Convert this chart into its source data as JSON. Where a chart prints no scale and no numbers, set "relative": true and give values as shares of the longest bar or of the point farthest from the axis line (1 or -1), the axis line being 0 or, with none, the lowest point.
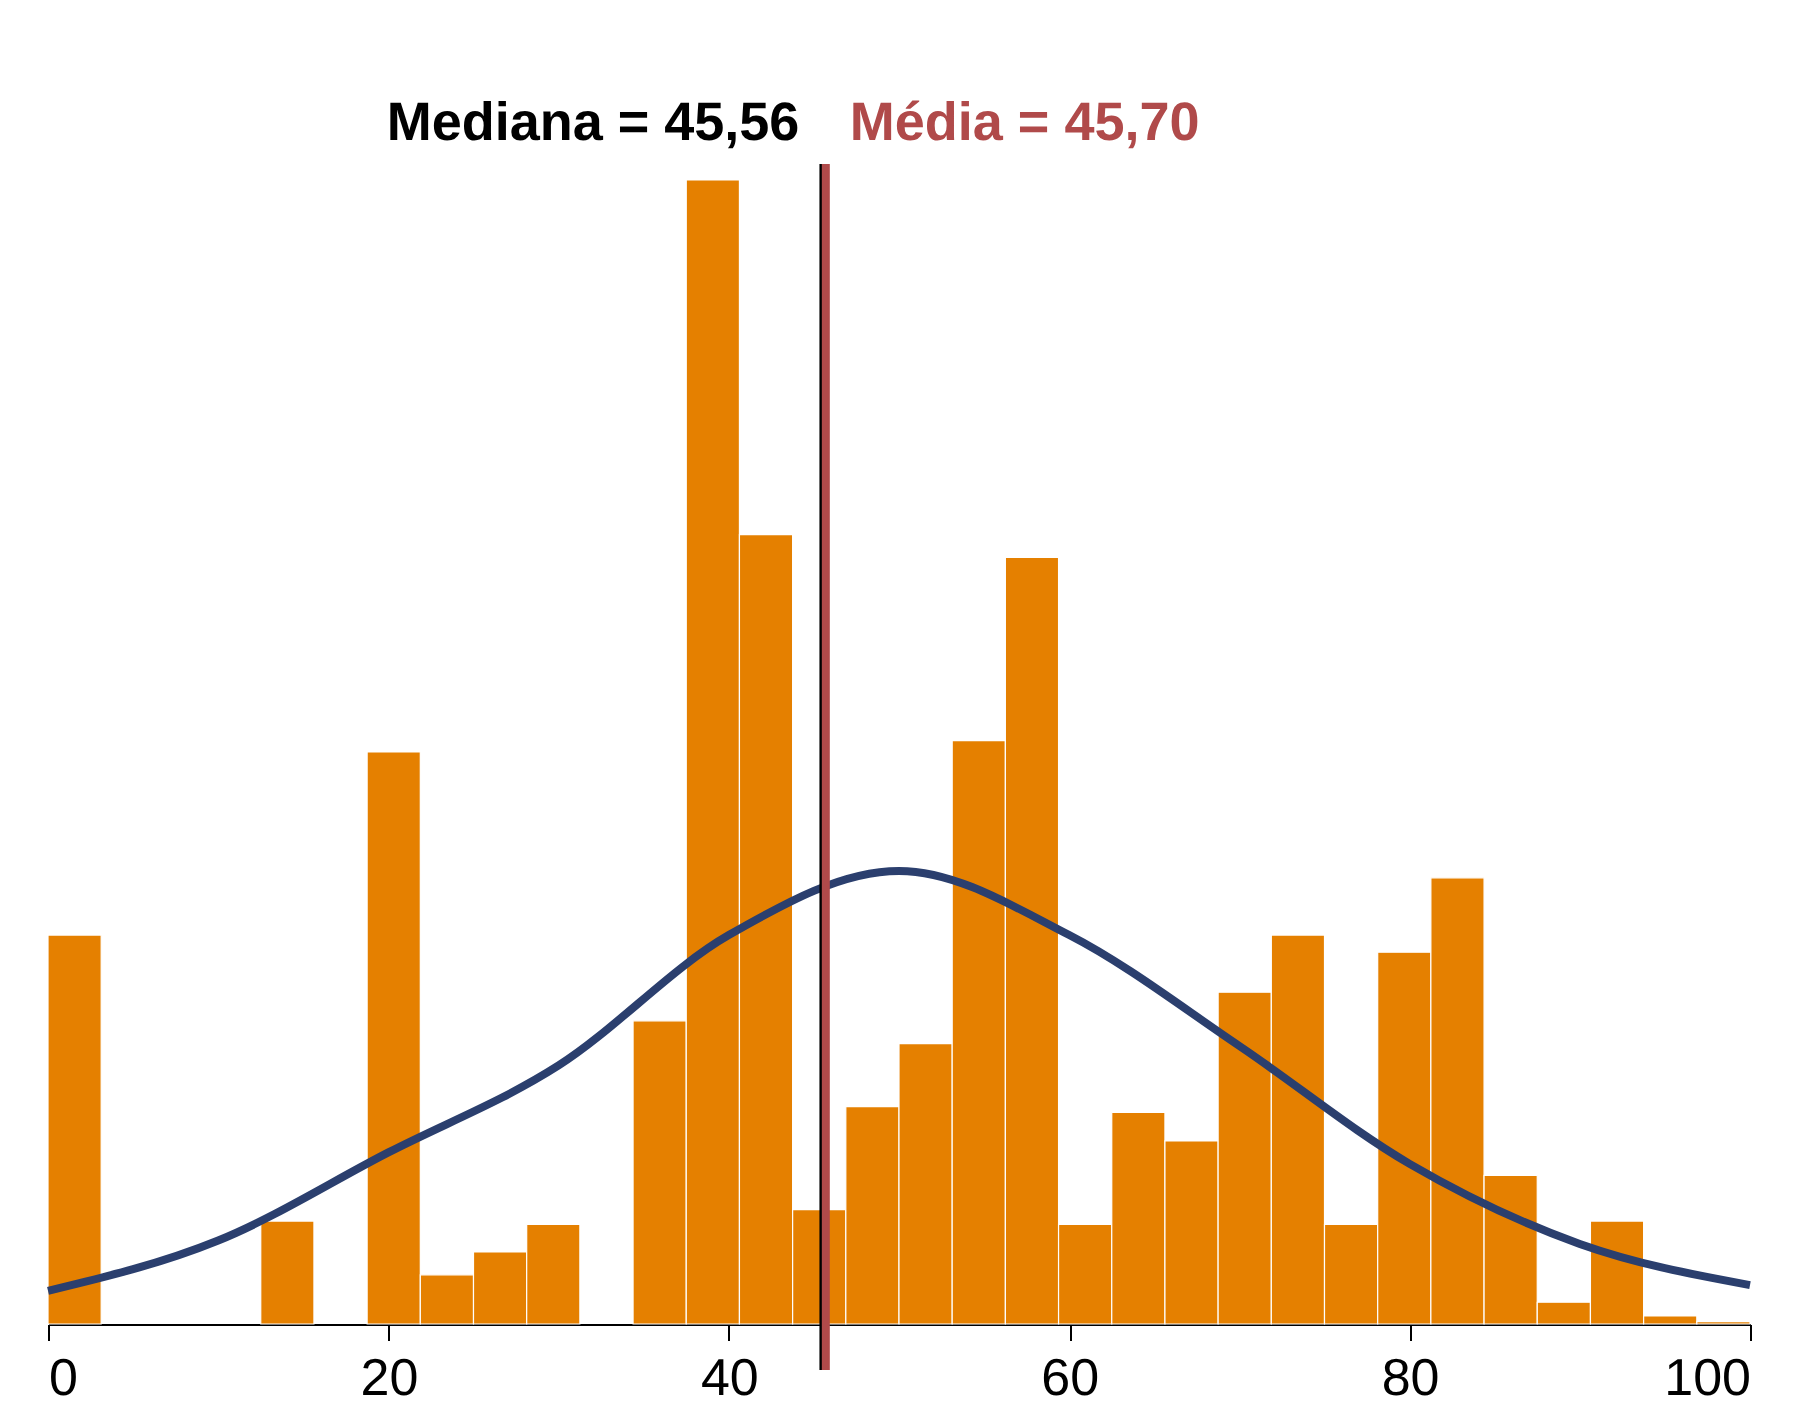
{
  "chart_data": {
    "type": "histogram",
    "relative": true,
    "color": "#e58000",
    "bins": [
      0,
      3.125,
      6.25,
      9.375,
      12.5,
      15.625,
      18.75,
      21.875,
      25,
      28.125,
      31.25,
      34.375,
      37.5,
      40.625,
      43.75,
      46.875,
      50,
      53.125,
      56.25,
      59.375,
      62.5,
      65.625,
      68.75,
      71.875,
      75,
      78.125,
      81.25,
      84.375,
      87.5,
      90.625,
      93.75,
      96.875,
      100
    ],
    "values": [
      0.34,
      0,
      0,
      0,
      0.09,
      0,
      0.5,
      0.043,
      0.063,
      0.087,
      0,
      0.265,
      1,
      0.69,
      0.1,
      0.19,
      0.245,
      0.51,
      0.67,
      0.087,
      0.185,
      0.16,
      0.29,
      0.34,
      0.087,
      0.325,
      0.39,
      0.13,
      0.019,
      0.09,
      0.007,
      0.002
    ],
    "series": [
      {
        "type": "line",
        "color": "#2b3f6e",
        "x": [
          0,
          10,
          20,
          30,
          40,
          50,
          60,
          70,
          80,
          90,
          100
        ],
        "values": [
          0.029,
          0.073,
          0.15,
          0.226,
          0.34,
          0.396,
          0.34,
          0.243,
          0.14,
          0.07,
          0.034
        ]
      }
    ],
    "xlim": [
      0,
      100
    ],
    "xticks": [
      0,
      20,
      40,
      60,
      80,
      100
    ],
    "ref_lines": [
      {
        "axis": "x",
        "value": 45.56,
        "label": "Mediana = 45,56",
        "color": "#000000"
      },
      {
        "axis": "x",
        "value": 45.7,
        "label": "Média = 45,70",
        "color": "#b04a4a"
      }
    ],
    "grid": false
  }
}
